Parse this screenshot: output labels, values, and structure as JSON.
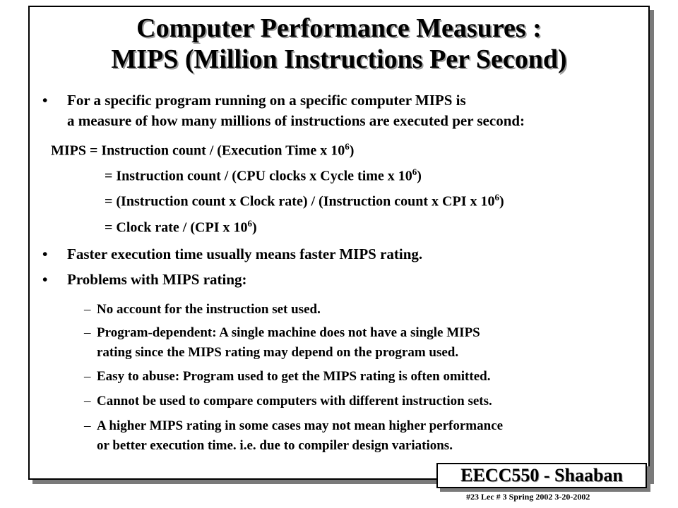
{
  "title": {
    "line1": "Computer Performance Measures :",
    "line2": "MIPS (Million Instructions Per Second)"
  },
  "bullets": {
    "intro_line1": "For a specific program running on a specific computer MIPS is",
    "intro_line2": "a measure of how many millions of instructions are executed per second:",
    "faster": "Faster execution time usually means faster MIPS rating.",
    "problems": "Problems with MIPS rating:",
    "marker": "•"
  },
  "equations": {
    "eq1_lhs": "MIPS  =  Instruction count  /  (Execution Time x 10",
    "eq1_rhs": ")",
    "eq2_lhs": "=  Instruction count  /  (CPU clocks x Cycle time x 10",
    "eq2_rhs": ")",
    "eq3_lhs": "=  (Instruction count  x  Clock rate)  /  (Instruction count  x  CPI x 10",
    "eq3_rhs": ")",
    "eq4_lhs": "=   Clock rate  /  (CPI x 10",
    "eq4_rhs": ")",
    "exponent": "6"
  },
  "problems": {
    "dash": "–",
    "p1": "No account for the instruction set used.",
    "p2_line1": "Program-dependent: A single machine does not have a single MIPS",
    "p2_line2": "rating since the MIPS rating may depend on the program used.",
    "p3": "Easy to abuse:  Program used to get the MIPS rating is often omitted.",
    "p4": "Cannot be used to compare computers with different instruction sets.",
    "p5_line1": "A higher MIPS rating in some cases may not mean higher performance",
    "p5_line2": "or better execution time.  i.e. due to compiler design variations."
  },
  "footer": {
    "course": "EECC550 - Shaaban",
    "note": "#23   Lec # 3    Spring 2002   3-20-2002"
  }
}
